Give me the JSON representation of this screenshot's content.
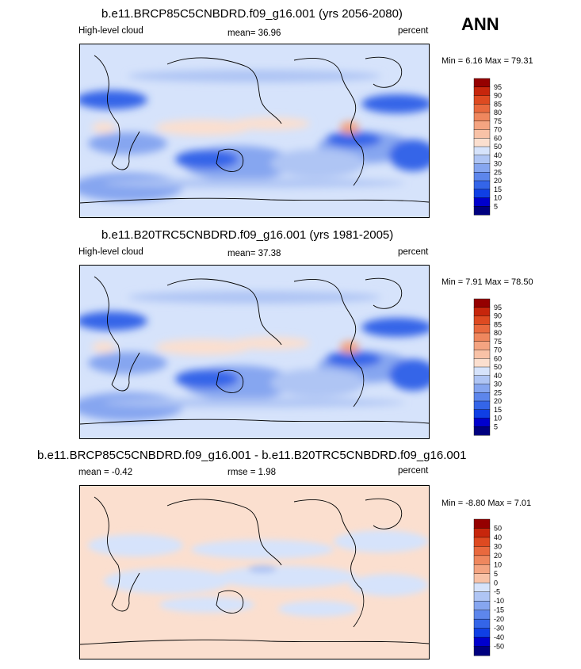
{
  "season_label": "ANN",
  "colors": {
    "diverging": [
      "#00007f",
      "#0000cd",
      "#0f3fe5",
      "#3465e8",
      "#5d86ec",
      "#86a6f0",
      "#afc5f4",
      "#d6e3fb",
      "#fbdfcf",
      "#f8c2a7",
      "#f4a481",
      "#ef875e",
      "#e9693e",
      "#de4a21",
      "#c7260c",
      "#950000"
    ]
  },
  "chart_data": [
    {
      "type": "heatmap",
      "title": "b.e11.BRCP85C5CNBDRD.f09_g16.001 (yrs 2056-2080)",
      "left_label": "High-level cloud",
      "mean_text": "mean=  36.96",
      "units": "percent",
      "minmax_text": "Min =   6.16 Max =  79.31",
      "colorbar_ticks": [
        "95",
        "90",
        "85",
        "80",
        "75",
        "70",
        "60",
        "50",
        "40",
        "30",
        "25",
        "20",
        "15",
        "10",
        "5"
      ]
    },
    {
      "type": "heatmap",
      "title": "b.e11.B20TRC5CNBDRD.f09_g16.001 (yrs 1981-2005)",
      "left_label": "High-level cloud",
      "mean_text": "mean=  37.38",
      "units": "percent",
      "minmax_text": "Min =   7.91 Max =  78.50",
      "colorbar_ticks": [
        "95",
        "90",
        "85",
        "80",
        "75",
        "70",
        "60",
        "50",
        "40",
        "30",
        "25",
        "20",
        "15",
        "10",
        "5"
      ]
    },
    {
      "type": "heatmap",
      "title": "b.e11.BRCP85C5CNBDRD.f09_g16.001 - b.e11.B20TRC5CNBDRD.f09_g16.001",
      "left_label": "mean =  -0.42",
      "mean_text": "rmse =   1.98",
      "units": "percent",
      "minmax_text": "Min =  -8.80 Max =   7.01",
      "colorbar_ticks": [
        "50",
        "40",
        "30",
        "20",
        "10",
        "5",
        "0",
        "-5",
        "-10",
        "-15",
        "-20",
        "-30",
        "-40",
        "-50"
      ]
    }
  ]
}
